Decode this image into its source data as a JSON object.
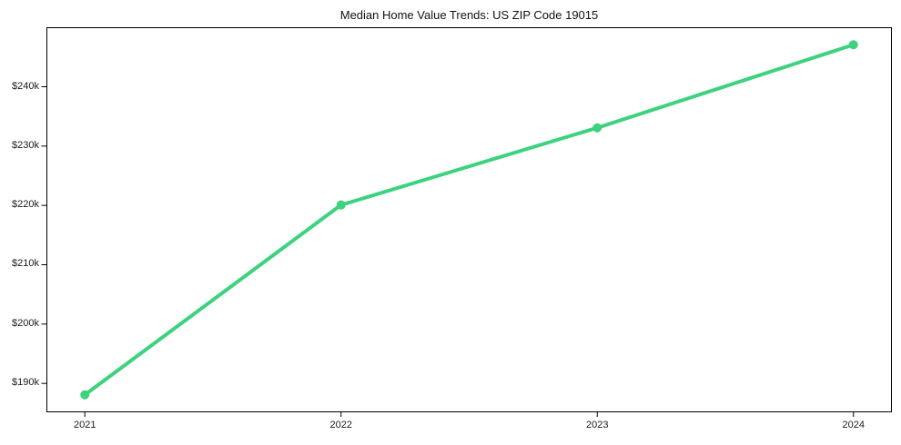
{
  "chart_data": {
    "type": "line",
    "title": "Median Home Value Trends: US ZIP Code 19015",
    "categories": [
      "2021",
      "2022",
      "2023",
      "2024"
    ],
    "values": [
      188000,
      220000,
      233000,
      247000
    ],
    "xlabel": "",
    "ylabel": "",
    "ylim": [
      185050,
      249950
    ],
    "y_ticks": [
      {
        "value": 240000,
        "label": "$240k"
      },
      {
        "value": 230000,
        "label": "$230k"
      },
      {
        "value": 220000,
        "label": "$220k"
      },
      {
        "value": 210000,
        "label": "$210k"
      },
      {
        "value": 200000,
        "label": "$200k"
      },
      {
        "value": 190000,
        "label": "$190k"
      }
    ],
    "grid": false,
    "legend_position": "none",
    "line_color": "#3dd27e",
    "line_width": 4,
    "marker": "circle",
    "marker_radius": 5,
    "background_color": "#ffffff",
    "frame_color": "#000000",
    "text_color": "#1a1a1a"
  }
}
